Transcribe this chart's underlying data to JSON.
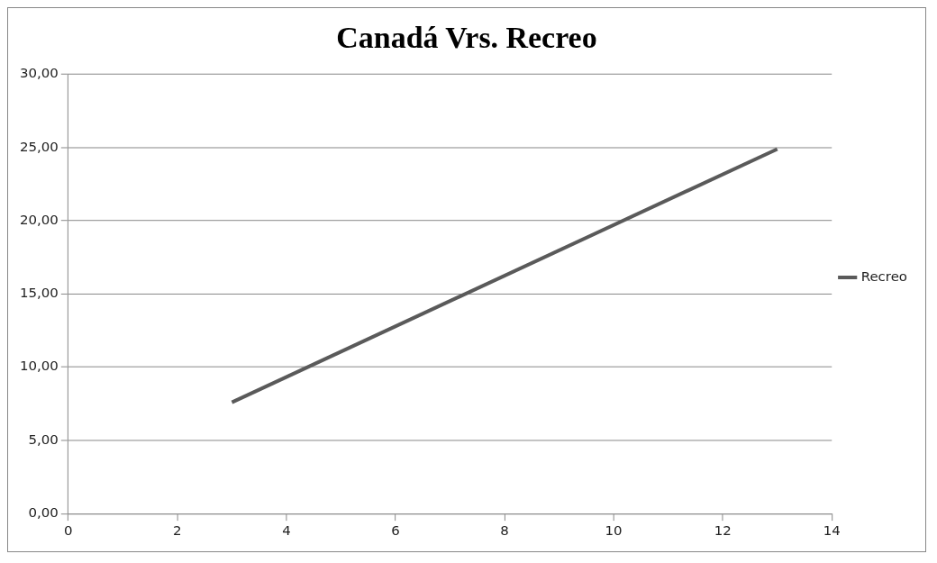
{
  "chart_data": {
    "type": "line",
    "title": "Canadá Vrs. Recreo",
    "x": [
      3,
      13
    ],
    "series": [
      {
        "name": "Recreo",
        "color": "#5a5a5a",
        "values": [
          7.6,
          24.9
        ]
      }
    ],
    "xlim": [
      0,
      14
    ],
    "xticks": [
      0,
      2,
      4,
      6,
      8,
      10,
      12,
      14
    ],
    "ylim": [
      0,
      30
    ],
    "yticks": [
      {
        "value": 0,
        "label": "0,00"
      },
      {
        "value": 5,
        "label": "5,00"
      },
      {
        "value": 10,
        "label": "10,00"
      },
      {
        "value": 15,
        "label": "15,00"
      },
      {
        "value": 20,
        "label": "20,00"
      },
      {
        "value": 25,
        "label": "25,00"
      },
      {
        "value": 30,
        "label": "30,00"
      }
    ],
    "grid": "y",
    "legend": "right",
    "marker": "none",
    "line_style": "solid"
  }
}
